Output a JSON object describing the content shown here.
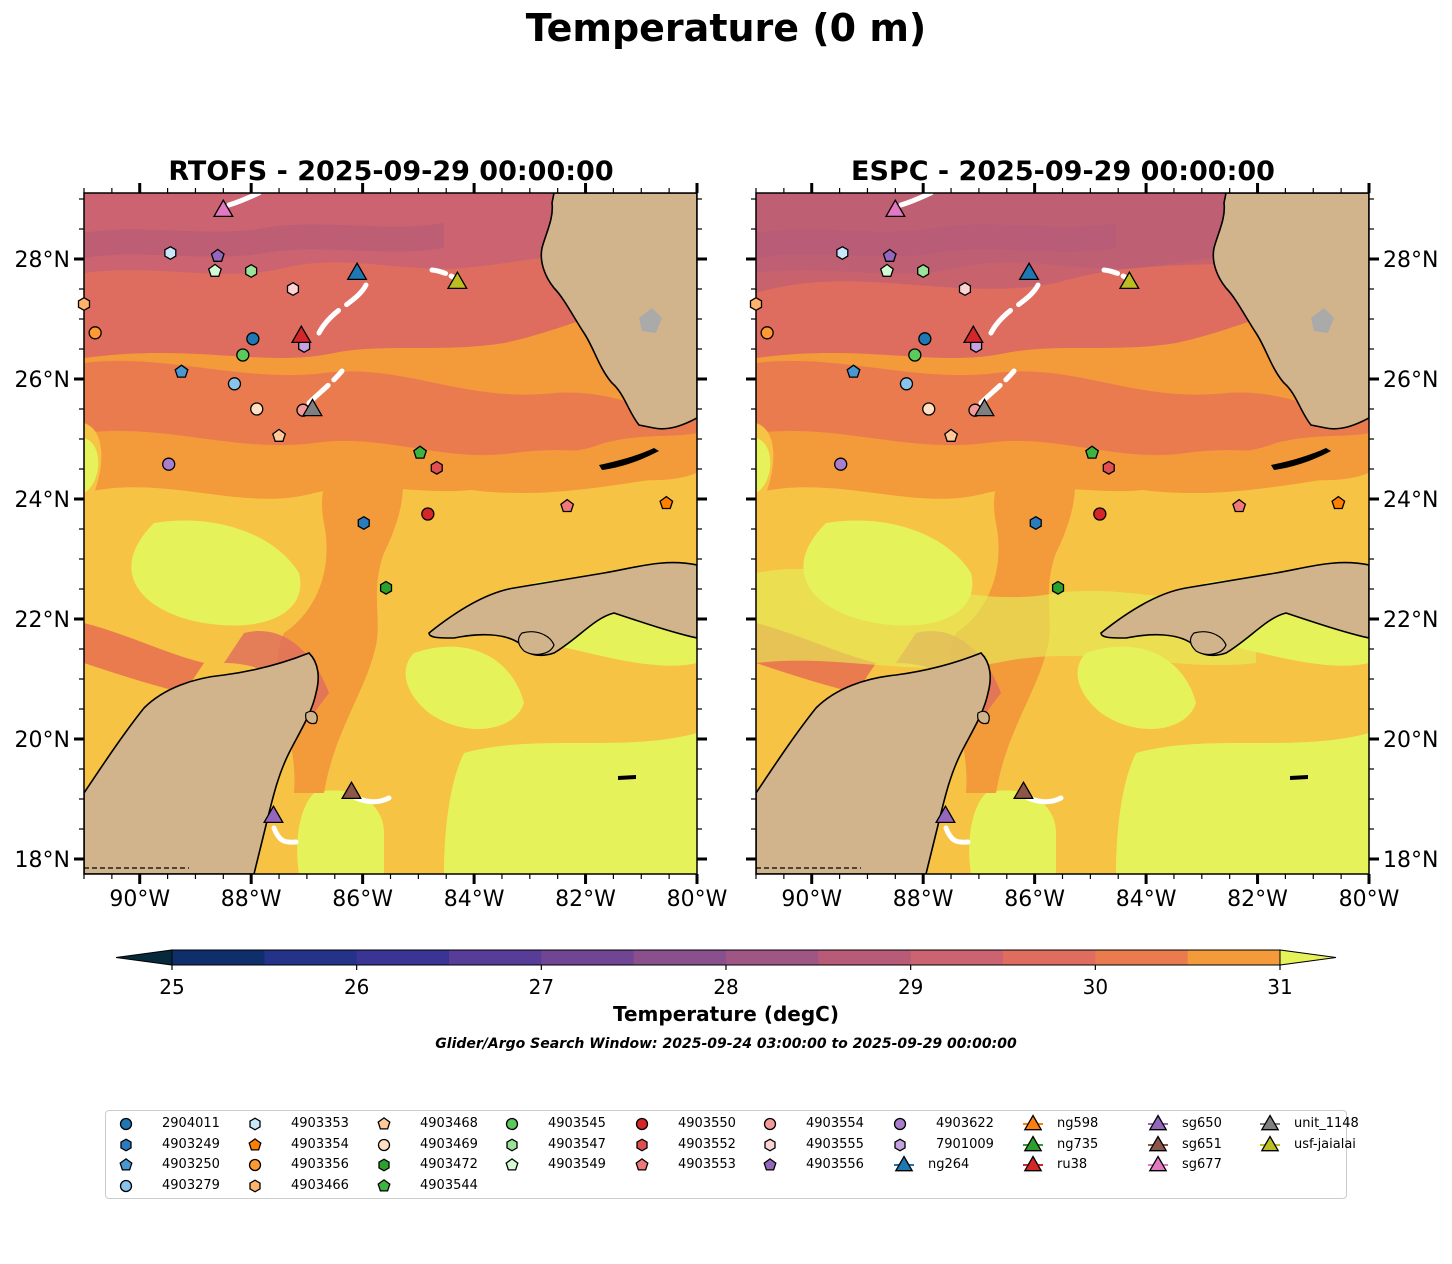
{
  "title": "Temperature (0 m)",
  "panels": [
    {
      "title": "RTOFS - 2025-09-29 00:00:00",
      "ylabel_side": "left"
    },
    {
      "title": "ESPC - 2025-09-29 00:00:00",
      "ylabel_side": "right"
    }
  ],
  "chart_data": {
    "type": "heatmap",
    "xlim": [
      -91,
      -80
    ],
    "ylim": [
      17.75,
      29.1
    ],
    "x_ticks": [
      -90,
      -88,
      -86,
      -84,
      -82,
      -80
    ],
    "x_tick_labels": [
      "90°W",
      "88°W",
      "86°W",
      "84°W",
      "82°W",
      "80°W"
    ],
    "y_ticks": [
      18,
      20,
      22,
      24,
      26,
      28
    ],
    "y_tick_labels": [
      "18°N",
      "20°N",
      "22°N",
      "24°N",
      "26°N",
      "28°N"
    ],
    "colorbar": {
      "label": "Temperature (degC)",
      "min": 25,
      "max": 31,
      "step": 0.5,
      "extend": "both",
      "ticks": [
        25,
        26,
        27,
        28,
        29,
        30,
        31
      ],
      "tick_labels": [
        "25",
        "26",
        "27",
        "28",
        "29",
        "30",
        "31"
      ],
      "colors": [
        "#062a3c",
        "#0f2f6b",
        "#24328a",
        "#3a3595",
        "#573c98",
        "#6f4594",
        "#8a4f8d",
        "#a05685",
        "#b75b78",
        "#cb6470",
        "#de6d5f",
        "#ea7b4e",
        "#f39a3a",
        "#f6c344",
        "#e5f25a"
      ]
    },
    "platforms": [
      {
        "name": "2904011",
        "marker": "circle",
        "color": "#1f77b4",
        "lon": -87.97,
        "lat": 26.67
      },
      {
        "name": "4903249",
        "marker": "hexagon",
        "color": "#2a7cbf",
        "lon": -85.98,
        "lat": 23.6
      },
      {
        "name": "4903250",
        "marker": "pentagon",
        "color": "#4a98d0",
        "lon": -89.25,
        "lat": 26.12
      },
      {
        "name": "4903279",
        "marker": "circle",
        "color": "#8cc3ec",
        "lon": -88.3,
        "lat": 25.92
      },
      {
        "name": "4903353",
        "marker": "hexagon",
        "color": "#c9e6fb",
        "lon": -89.45,
        "lat": 28.1
      },
      {
        "name": "4903354",
        "marker": "pentagon",
        "color": "#ff8000",
        "lon": -80.55,
        "lat": 23.93
      },
      {
        "name": "4903356",
        "marker": "circle",
        "color": "#ff9a33",
        "lon": -90.8,
        "lat": 26.77
      },
      {
        "name": "4903466",
        "marker": "hexagon",
        "color": "#ffb36b",
        "lon": -91.0,
        "lat": 27.25
      },
      {
        "name": "4903468",
        "marker": "pentagon",
        "color": "#ffc99a",
        "lon": -87.5,
        "lat": 25.05
      },
      {
        "name": "4903469",
        "marker": "circle",
        "color": "#ffe0c2",
        "lon": -87.9,
        "lat": 25.5
      },
      {
        "name": "4903472",
        "marker": "hexagon",
        "color": "#2ca02c",
        "lon": -85.58,
        "lat": 22.52
      },
      {
        "name": "4903544",
        "marker": "pentagon",
        "color": "#3fb33f",
        "lon": -84.97,
        "lat": 24.77
      },
      {
        "name": "4903545",
        "marker": "circle",
        "color": "#5cc95c",
        "lon": -88.15,
        "lat": 26.4
      },
      {
        "name": "4903547",
        "marker": "hexagon",
        "color": "#9be39b",
        "lon": -88.0,
        "lat": 27.8
      },
      {
        "name": "4903549",
        "marker": "pentagon",
        "color": "#d3fbd3",
        "lon": -88.65,
        "lat": 27.8
      },
      {
        "name": "4903550",
        "marker": "circle",
        "color": "#d62728",
        "lon": -84.83,
        "lat": 23.75
      },
      {
        "name": "4903552",
        "marker": "hexagon",
        "color": "#e05050",
        "lon": -84.67,
        "lat": 24.52
      },
      {
        "name": "4903553",
        "marker": "pentagon",
        "color": "#f07878",
        "lon": -82.33,
        "lat": 23.88
      },
      {
        "name": "4903554",
        "marker": "circle",
        "color": "#f39a9a",
        "lon": -87.07,
        "lat": 25.48
      },
      {
        "name": "4903555",
        "marker": "hexagon",
        "color": "#fbd5d5",
        "lon": -87.25,
        "lat": 27.5
      },
      {
        "name": "4903556",
        "marker": "pentagon",
        "color": "#9467bd",
        "lon": -88.6,
        "lat": 28.05
      },
      {
        "name": "4903622",
        "marker": "circle",
        "color": "#a77fcc",
        "lon": -89.48,
        "lat": 24.58
      },
      {
        "name": "7901009",
        "marker": "hexagon",
        "color": "#c3a3e0",
        "lon": -87.05,
        "lat": 26.55
      },
      {
        "name": "ng264",
        "marker": "triangle",
        "color": "#1f77b4",
        "lon": -86.1,
        "lat": 27.75
      },
      {
        "name": "ng598",
        "marker": "triangle",
        "color": "#ff7f0e",
        "lon": null,
        "lat": null
      },
      {
        "name": "ng735",
        "marker": "triangle",
        "color": "#2ca02c",
        "lon": null,
        "lat": null
      },
      {
        "name": "ru38",
        "marker": "triangle",
        "color": "#d62728",
        "lon": -87.1,
        "lat": 26.7
      },
      {
        "name": "sg650",
        "marker": "triangle",
        "color": "#9467bd",
        "lon": -87.6,
        "lat": 18.7
      },
      {
        "name": "sg651",
        "marker": "triangle",
        "color": "#8c564b",
        "lon": -86.2,
        "lat": 19.1
      },
      {
        "name": "sg677",
        "marker": "triangle",
        "color": "#e377c2",
        "lon": -88.5,
        "lat": 28.8
      },
      {
        "name": "unit_1148",
        "marker": "triangle",
        "color": "#7f7f7f",
        "lon": -86.9,
        "lat": 25.48
      },
      {
        "name": "usf-jaialai",
        "marker": "triangle",
        "color": "#bcbd22",
        "lon": -84.3,
        "lat": 27.6
      }
    ]
  },
  "search_window": "Glider/Argo Search Window: 2025-09-24 03:00:00 to 2025-09-29 00:00:00"
}
